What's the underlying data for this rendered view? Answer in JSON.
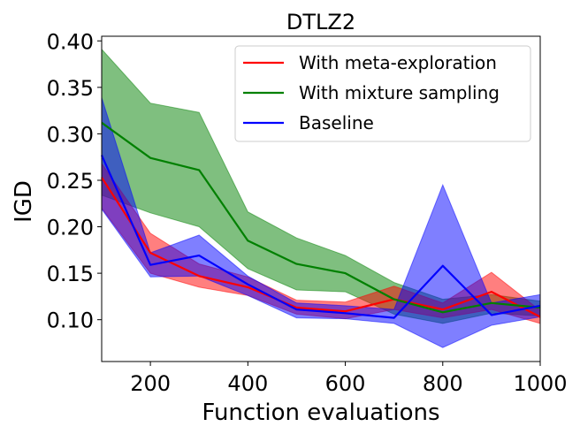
{
  "chart_data": {
    "type": "line",
    "title": "DTLZ2",
    "xlabel": "Function evaluations",
    "ylabel": "IGD",
    "xlim": [
      100,
      1000
    ],
    "ylim": [
      0.055,
      0.405
    ],
    "xticks": [
      200,
      400,
      600,
      800,
      1000
    ],
    "xtick_labels": [
      "200",
      "400",
      "600",
      "800",
      "1000"
    ],
    "yticks": [
      0.1,
      0.15,
      0.2,
      0.25,
      0.3,
      0.35,
      0.4
    ],
    "ytick_labels": [
      "0.10",
      "0.15",
      "0.20",
      "0.25",
      "0.30",
      "0.35",
      "0.40"
    ],
    "grid": false,
    "legend_position": "top-right",
    "x": [
      100,
      200,
      300,
      400,
      500,
      600,
      700,
      800,
      900,
      1000
    ],
    "series": [
      {
        "name": "With meta-exploration",
        "color": "#ff0000",
        "values": [
          0.253,
          0.172,
          0.147,
          0.135,
          0.113,
          0.109,
          0.122,
          0.111,
          0.13,
          0.103
        ],
        "lower": [
          0.22,
          0.15,
          0.135,
          0.126,
          0.106,
          0.101,
          0.111,
          0.102,
          0.111,
          0.096
        ],
        "upper": [
          0.268,
          0.193,
          0.16,
          0.146,
          0.121,
          0.119,
          0.136,
          0.118,
          0.151,
          0.11
        ]
      },
      {
        "name": "With mixture sampling",
        "color": "#008000",
        "values": [
          0.312,
          0.274,
          0.261,
          0.185,
          0.16,
          0.15,
          0.122,
          0.108,
          0.118,
          0.113
        ],
        "lower": [
          0.234,
          0.215,
          0.2,
          0.155,
          0.132,
          0.13,
          0.106,
          0.096,
          0.107,
          0.104
        ],
        "upper": [
          0.391,
          0.333,
          0.323,
          0.216,
          0.188,
          0.169,
          0.14,
          0.122,
          0.127,
          0.12
        ]
      },
      {
        "name": "Baseline",
        "color": "#0000ff",
        "values": [
          0.277,
          0.159,
          0.169,
          0.138,
          0.111,
          0.107,
          0.102,
          0.158,
          0.105,
          0.115
        ],
        "lower": [
          0.219,
          0.146,
          0.147,
          0.126,
          0.102,
          0.101,
          0.096,
          0.07,
          0.094,
          0.103
        ],
        "upper": [
          0.339,
          0.172,
          0.191,
          0.147,
          0.118,
          0.115,
          0.111,
          0.245,
          0.118,
          0.127
        ]
      }
    ]
  }
}
